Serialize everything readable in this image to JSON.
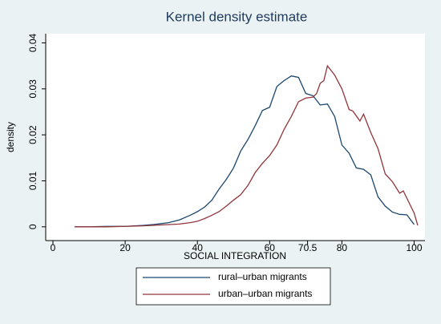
{
  "chart_data": {
    "type": "line",
    "title": "Kernel density estimate",
    "xlabel": "SOCIAL INTEGRATION",
    "ylabel": "density",
    "xlim": [
      -2,
      103
    ],
    "xticks": [
      0,
      20,
      40,
      60,
      70.5,
      80,
      100
    ],
    "ylim": [
      -0.003,
      0.042
    ],
    "yticks": [
      0,
      0.01,
      0.02,
      0.03,
      0.04
    ],
    "legend": "bottom",
    "series": [
      {
        "name": "rural–urban migrants",
        "color": "#1a476f",
        "x": [
          6,
          10,
          15,
          20,
          25,
          28,
          32,
          35,
          38,
          40,
          42,
          44,
          46,
          48,
          50,
          52,
          54,
          56,
          58,
          60,
          62,
          64,
          66,
          68,
          70,
          72,
          74,
          76,
          78,
          80,
          82,
          84,
          86,
          88,
          90,
          92,
          94,
          96,
          98,
          100
        ],
        "values": [
          0,
          0,
          0.0001,
          0.0001,
          0.0003,
          0.0005,
          0.0009,
          0.0015,
          0.0025,
          0.0033,
          0.0043,
          0.0058,
          0.0082,
          0.0103,
          0.0128,
          0.0165,
          0.019,
          0.022,
          0.0253,
          0.026,
          0.0305,
          0.0318,
          0.0328,
          0.0325,
          0.029,
          0.0285,
          0.0265,
          0.0267,
          0.024,
          0.0178,
          0.016,
          0.0128,
          0.0125,
          0.0113,
          0.0065,
          0.0045,
          0.0032,
          0.0027,
          0.0026,
          0.0005
        ]
      },
      {
        "name": "urban–urban migrants",
        "color": "#90353b",
        "x": [
          6,
          15,
          20,
          25,
          30,
          35,
          38,
          40,
          42,
          44,
          46,
          48,
          50,
          52,
          54,
          56,
          58,
          60,
          62,
          64,
          66,
          68,
          70,
          72,
          73,
          74,
          75,
          76,
          78,
          80,
          82,
          83,
          85,
          86,
          88,
          90,
          92,
          94,
          96,
          97,
          98,
          100,
          101
        ],
        "values": [
          0,
          0,
          0.0001,
          0.0002,
          0.0004,
          0.0006,
          0.0009,
          0.0012,
          0.0018,
          0.0025,
          0.0033,
          0.0045,
          0.0058,
          0.007,
          0.009,
          0.0118,
          0.0138,
          0.0155,
          0.0178,
          0.0212,
          0.024,
          0.0272,
          0.028,
          0.0282,
          0.029,
          0.0312,
          0.0318,
          0.035,
          0.033,
          0.03,
          0.0255,
          0.0252,
          0.023,
          0.0245,
          0.0205,
          0.017,
          0.0115,
          0.0098,
          0.0073,
          0.0078,
          0.0062,
          0.003,
          0.0003
        ]
      }
    ]
  }
}
